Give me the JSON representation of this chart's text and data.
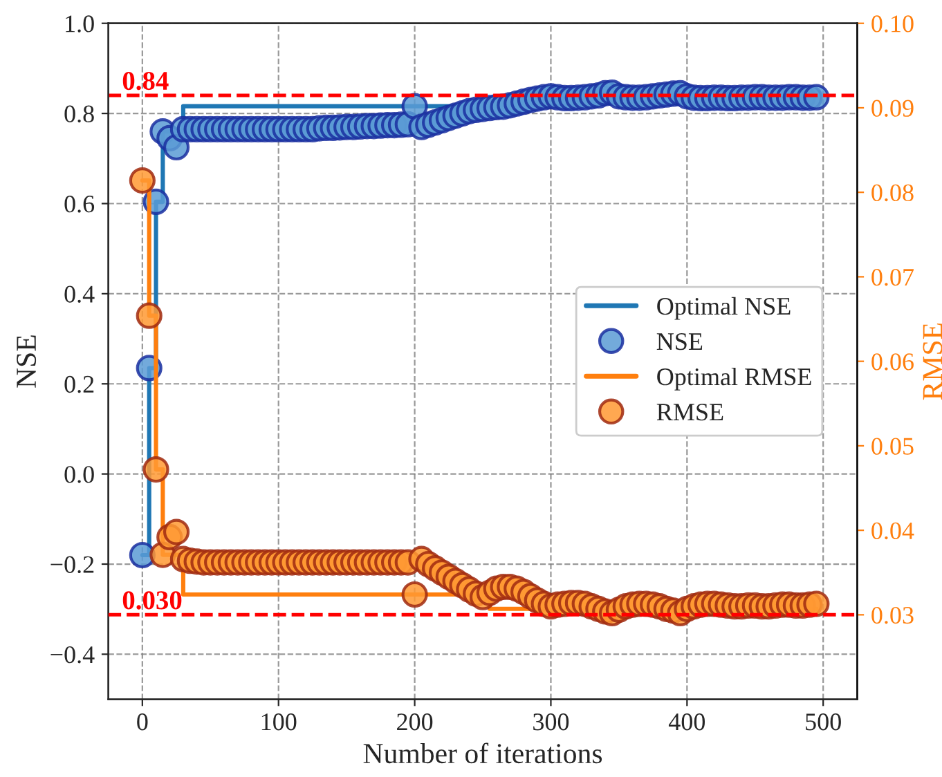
{
  "chart_data": {
    "type": "scatter",
    "xlabel": "Number of iterations",
    "ylabel": "NSE",
    "y2label": "RMSE",
    "xlim": [
      -25,
      525
    ],
    "xticks": [
      0,
      100,
      200,
      300,
      400,
      500
    ],
    "ylim": [
      -0.5,
      1.0
    ],
    "yticks": [
      {
        "value": -0.4,
        "label": "−0.4"
      },
      {
        "value": -0.2,
        "label": "−0.2"
      },
      {
        "value": 0,
        "label": "0.0"
      },
      {
        "value": 0.2,
        "label": "0.2"
      },
      {
        "value": 0.4,
        "label": "0.4"
      },
      {
        "value": 0.6,
        "label": "0.6"
      },
      {
        "value": 0.8,
        "label": "0.8"
      },
      {
        "value": 1.0,
        "label": "1.0"
      }
    ],
    "y2lim": [
      0.02,
      0.1
    ],
    "y2ticks": [
      {
        "value": 0.03,
        "label": "0.03"
      },
      {
        "value": 0.04,
        "label": "0.04"
      },
      {
        "value": 0.05,
        "label": "0.05"
      },
      {
        "value": 0.06,
        "label": "0.06"
      },
      {
        "value": 0.07,
        "label": "0.07"
      },
      {
        "value": 0.08,
        "label": "0.08"
      },
      {
        "value": 0.09,
        "label": "0.09"
      },
      {
        "value": 0.1,
        "label": "0.10"
      }
    ],
    "grid": true,
    "legend": "right",
    "marker": "circle",
    "ref_lines": [
      {
        "axis": "y",
        "value": 0.84,
        "label": "0.84",
        "color": "#ff0000",
        "line_style": "dashed"
      },
      {
        "axis": "y2",
        "value": 0.03,
        "label": "0.030",
        "color": "#ff0000",
        "line_style": "dashed"
      }
    ],
    "series": [
      {
        "name": "Optimal NSE",
        "type": "line",
        "axis": "y",
        "color": "#1f77b4",
        "marker": "none",
        "x": [
          0,
          5,
          5,
          10,
          10,
          15,
          15,
          30,
          30,
          260,
          300,
          495
        ],
        "values": [
          -0.18,
          -0.18,
          0.235,
          0.235,
          0.604,
          0.604,
          0.76,
          0.76,
          0.816,
          0.816,
          0.838,
          0.838
        ]
      },
      {
        "name": "NSE",
        "axis": "y",
        "color": "#5b9bd5",
        "x": [
          0,
          5,
          10,
          15,
          20,
          25,
          30,
          35,
          40,
          45,
          50,
          55,
          60,
          65,
          70,
          75,
          80,
          85,
          90,
          95,
          100,
          105,
          110,
          115,
          120,
          125,
          130,
          135,
          140,
          145,
          150,
          155,
          160,
          165,
          170,
          175,
          180,
          185,
          190,
          195,
          200,
          205,
          210,
          215,
          220,
          225,
          230,
          235,
          240,
          245,
          250,
          255,
          260,
          265,
          270,
          275,
          280,
          285,
          290,
          295,
          300,
          305,
          310,
          315,
          320,
          325,
          330,
          335,
          340,
          345,
          350,
          355,
          360,
          365,
          370,
          375,
          380,
          385,
          390,
          395,
          400,
          405,
          410,
          415,
          420,
          425,
          430,
          435,
          440,
          445,
          450,
          455,
          460,
          465,
          470,
          475,
          480,
          485,
          490,
          495
        ],
        "values": [
          -0.18,
          0.235,
          0.604,
          0.76,
          0.745,
          0.725,
          0.765,
          0.765,
          0.765,
          0.765,
          0.765,
          0.765,
          0.765,
          0.765,
          0.765,
          0.765,
          0.765,
          0.765,
          0.765,
          0.765,
          0.765,
          0.765,
          0.765,
          0.765,
          0.765,
          0.765,
          0.767,
          0.768,
          0.768,
          0.769,
          0.77,
          0.77,
          0.771,
          0.772,
          0.772,
          0.773,
          0.774,
          0.774,
          0.775,
          0.776,
          0.816,
          0.77,
          0.775,
          0.78,
          0.785,
          0.79,
          0.795,
          0.8,
          0.805,
          0.808,
          0.81,
          0.812,
          0.814,
          0.815,
          0.818,
          0.822,
          0.826,
          0.83,
          0.833,
          0.836,
          0.838,
          0.836,
          0.834,
          0.834,
          0.835,
          0.836,
          0.838,
          0.84,
          0.845,
          0.846,
          0.838,
          0.836,
          0.835,
          0.835,
          0.836,
          0.838,
          0.84,
          0.842,
          0.844,
          0.845,
          0.838,
          0.835,
          0.834,
          0.834,
          0.835,
          0.835,
          0.834,
          0.834,
          0.835,
          0.835,
          0.836,
          0.836,
          0.835,
          0.835,
          0.835,
          0.836,
          0.836,
          0.835,
          0.835,
          0.836
        ]
      },
      {
        "name": "Optimal RMSE",
        "type": "line",
        "axis": "y2",
        "color": "#ff7f0e",
        "marker": "none",
        "x": [
          0,
          5,
          5,
          10,
          10,
          15,
          15,
          30,
          30,
          255,
          255,
          495
        ],
        "values": [
          0.0814,
          0.0814,
          0.0654,
          0.0654,
          0.0472,
          0.0472,
          0.0371,
          0.0371,
          0.0324,
          0.0324,
          0.0307,
          0.0307
        ]
      },
      {
        "name": "RMSE",
        "axis": "y2",
        "color": "#ff9933",
        "x": [
          0,
          5,
          10,
          15,
          20,
          25,
          30,
          35,
          40,
          45,
          50,
          55,
          60,
          65,
          70,
          75,
          80,
          85,
          90,
          95,
          100,
          105,
          110,
          115,
          120,
          125,
          130,
          135,
          140,
          145,
          150,
          155,
          160,
          165,
          170,
          175,
          180,
          185,
          190,
          195,
          200,
          205,
          210,
          215,
          220,
          225,
          230,
          235,
          240,
          245,
          250,
          255,
          260,
          265,
          270,
          275,
          280,
          285,
          290,
          295,
          300,
          305,
          310,
          315,
          320,
          325,
          330,
          335,
          340,
          345,
          350,
          355,
          360,
          365,
          370,
          375,
          380,
          385,
          390,
          395,
          400,
          405,
          410,
          415,
          420,
          425,
          430,
          435,
          440,
          445,
          450,
          455,
          460,
          465,
          470,
          475,
          480,
          485,
          490,
          495
        ],
        "values": [
          0.0814,
          0.0654,
          0.0472,
          0.0371,
          0.0392,
          0.0398,
          0.0366,
          0.0364,
          0.0363,
          0.0362,
          0.0362,
          0.0362,
          0.0362,
          0.0362,
          0.0362,
          0.0362,
          0.0362,
          0.0362,
          0.0362,
          0.0362,
          0.0362,
          0.0362,
          0.0362,
          0.0362,
          0.0362,
          0.0362,
          0.0362,
          0.0362,
          0.0362,
          0.0362,
          0.0362,
          0.0362,
          0.0362,
          0.0362,
          0.0362,
          0.0362,
          0.0362,
          0.0362,
          0.0362,
          0.0362,
          0.0324,
          0.0366,
          0.036,
          0.0355,
          0.035,
          0.0345,
          0.034,
          0.0335,
          0.033,
          0.0325,
          0.0321,
          0.0326,
          0.0331,
          0.0333,
          0.0333,
          0.0331,
          0.0327,
          0.0322,
          0.0317,
          0.0313,
          0.031,
          0.0312,
          0.0313,
          0.0314,
          0.0314,
          0.0313,
          0.031,
          0.0307,
          0.0304,
          0.0302,
          0.0306,
          0.031,
          0.0312,
          0.0313,
          0.0313,
          0.0312,
          0.031,
          0.0307,
          0.0305,
          0.0302,
          0.0307,
          0.031,
          0.0312,
          0.0313,
          0.0313,
          0.0312,
          0.0311,
          0.031,
          0.031,
          0.0311,
          0.0311,
          0.031,
          0.031,
          0.0311,
          0.0312,
          0.0312,
          0.0311,
          0.0311,
          0.0312,
          0.0313
        ]
      }
    ]
  }
}
